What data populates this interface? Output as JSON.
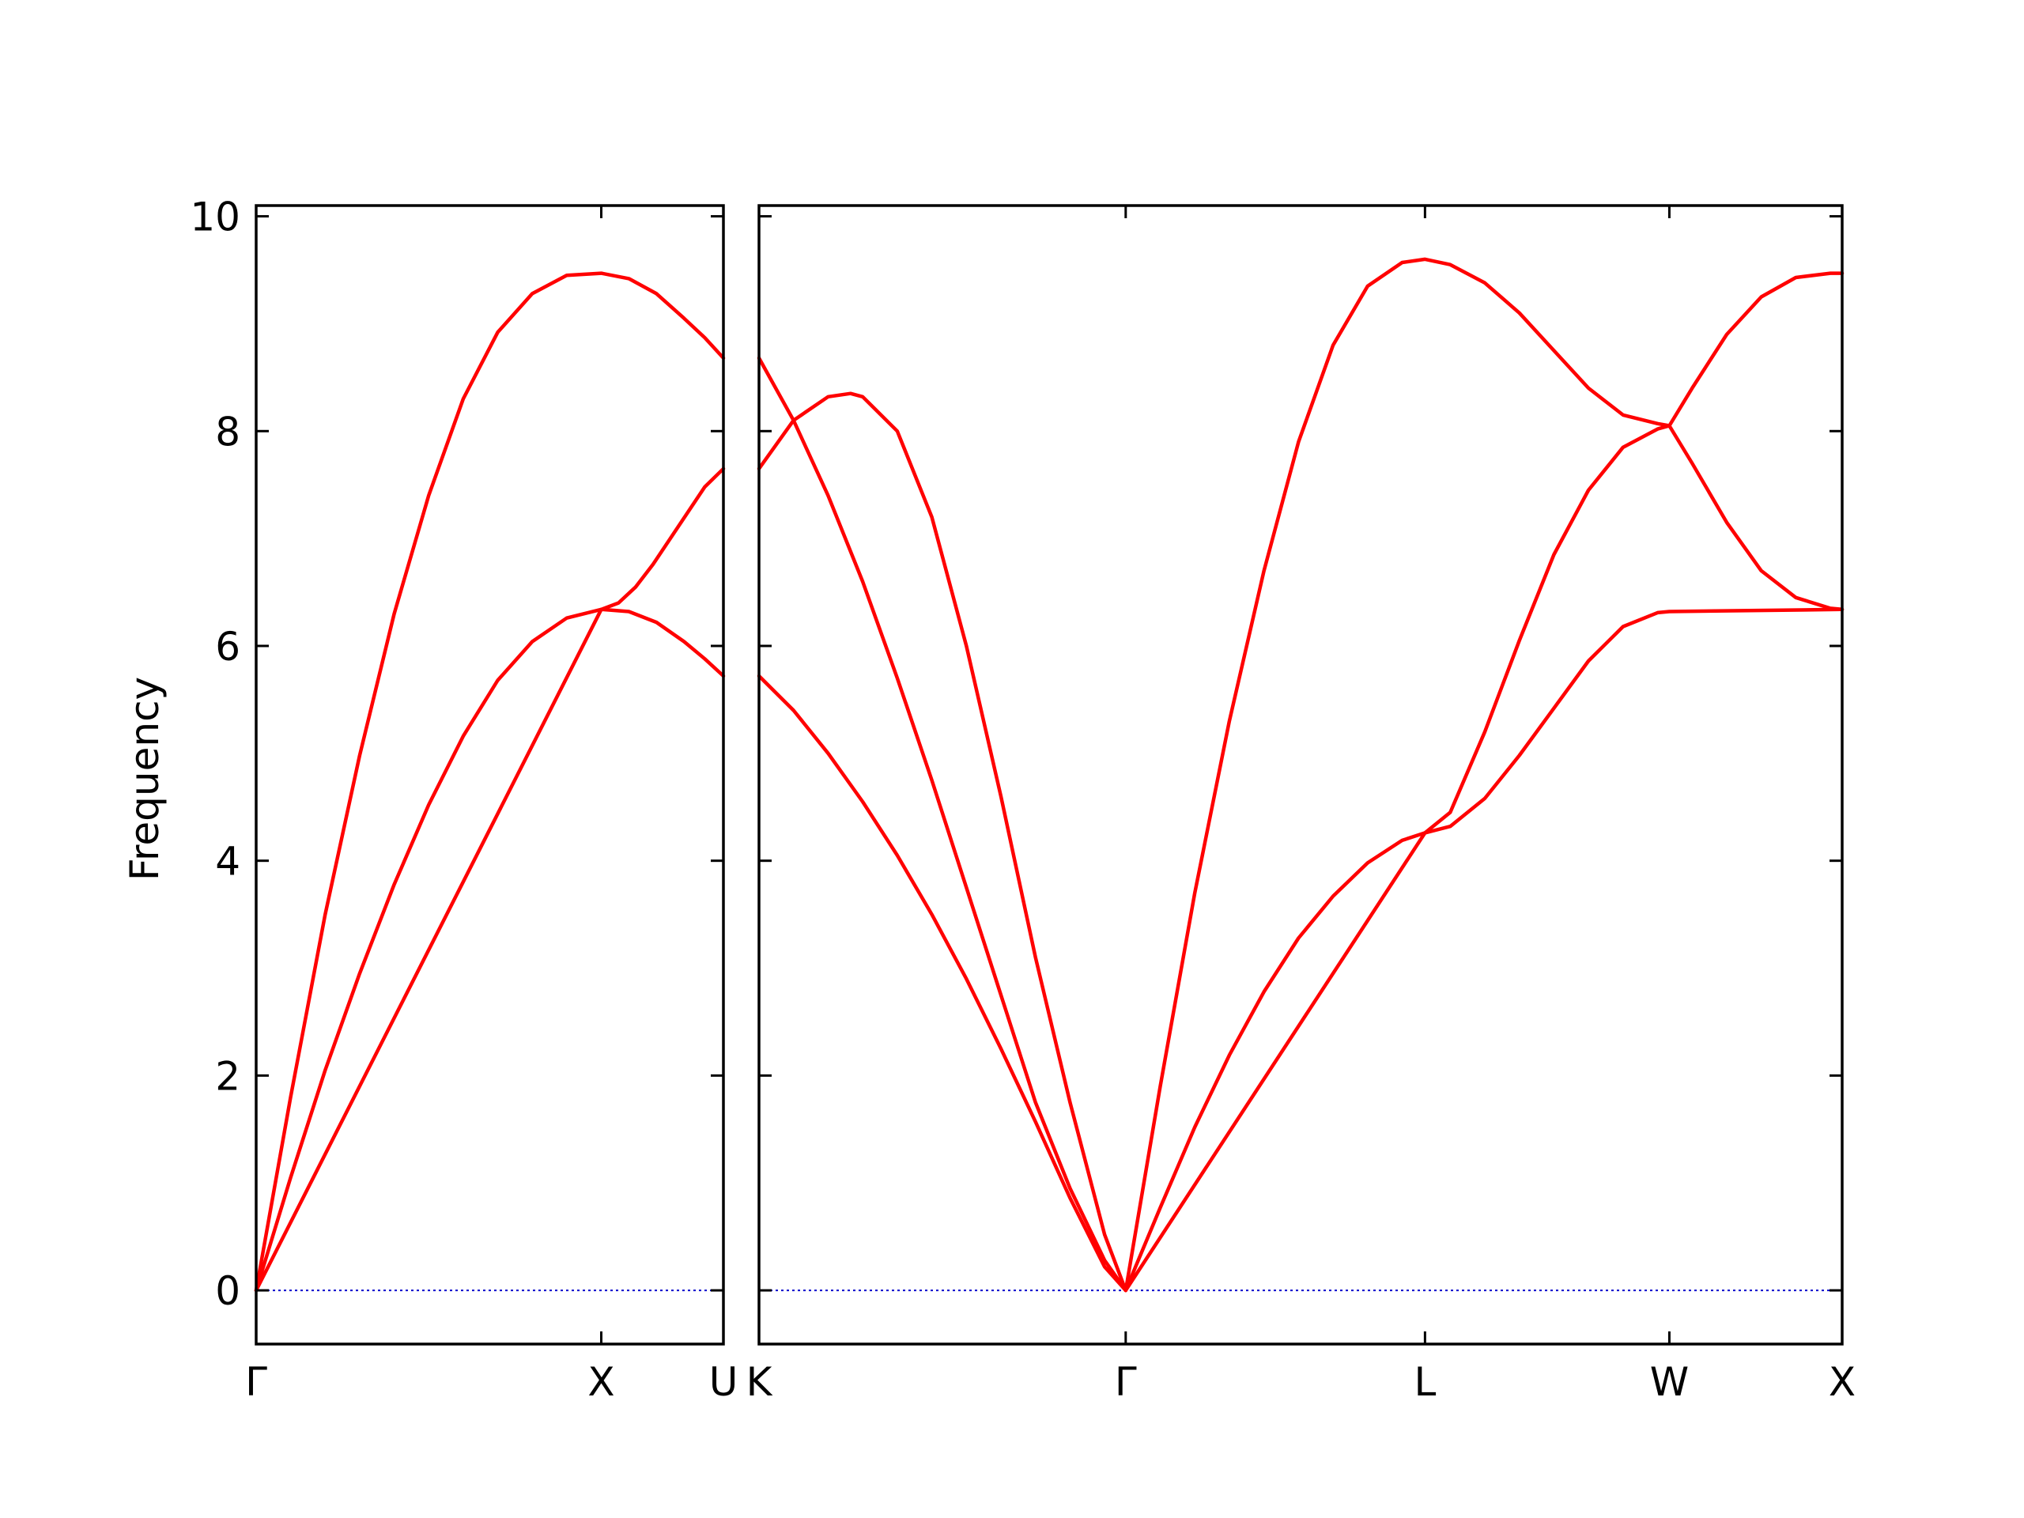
{
  "chart_data": {
    "type": "line",
    "title": "",
    "ylabel": "Frequency",
    "ylim": [
      -0.5,
      10.1
    ],
    "yticks": [
      0,
      2,
      4,
      6,
      8,
      10
    ],
    "band_color": "#ff0000",
    "zero_line_color": "#0000cc",
    "panels": [
      {
        "path_labels": [
          "Γ",
          "X",
          "U"
        ],
        "label_positions": [
          0,
          1,
          1.354
        ],
        "xlim": [
          0,
          1.354
        ],
        "series": [
          {
            "x": [
              0,
              0.1,
              0.2,
              0.3,
              0.4,
              0.5,
              0.6,
              0.7,
              0.8,
              0.9,
              1.0,
              1.08,
              1.16,
              1.24,
              1.3,
              1.354
            ],
            "values": [
              0,
              1.05,
              2.05,
              2.95,
              3.78,
              4.52,
              5.16,
              5.68,
              6.04,
              6.26,
              6.34,
              6.32,
              6.22,
              6.04,
              5.88,
              5.72
            ]
          },
          {
            "x": [
              0,
              1.0,
              1.05,
              1.1,
              1.15,
              1.2,
              1.25,
              1.3,
              1.354
            ],
            "values": [
              0,
              6.34,
              6.4,
              6.55,
              6.76,
              7.0,
              7.24,
              7.48,
              7.65
            ]
          },
          {
            "x": [
              0,
              0.1,
              0.2,
              0.3,
              0.4,
              0.5,
              0.6,
              0.7,
              0.8,
              0.9,
              1.0,
              1.08,
              1.16,
              1.24,
              1.3,
              1.354
            ],
            "values": [
              0,
              1.8,
              3.5,
              4.98,
              6.3,
              7.4,
              8.3,
              8.92,
              9.28,
              9.45,
              9.47,
              9.42,
              9.28,
              9.05,
              8.87,
              8.68
            ]
          }
        ]
      },
      {
        "path_labels": [
          "K",
          "Γ",
          "L",
          "W",
          "X"
        ],
        "label_positions": [
          0,
          1.061,
          1.927,
          2.634,
          3.134
        ],
        "xlim": [
          0,
          3.134
        ],
        "series": [
          {
            "x": [
              0,
              0.1,
              0.2,
              0.3,
              0.4,
              0.5,
              0.6,
              0.7,
              0.8,
              0.9,
              1.0,
              1.061,
              1.161,
              1.261,
              1.361,
              1.461,
              1.561,
              1.661,
              1.761,
              1.861,
              1.927,
              2.0,
              2.1,
              2.2,
              2.3,
              2.4,
              2.5,
              2.6,
              2.634,
              3.134
            ],
            "values": [
              5.72,
              5.4,
              5.0,
              4.55,
              4.05,
              3.5,
              2.9,
              2.25,
              1.57,
              0.86,
              0.22,
              0,
              0.77,
              1.52,
              2.19,
              2.78,
              3.28,
              3.67,
              3.98,
              4.19,
              4.26,
              4.32,
              4.58,
              4.98,
              5.42,
              5.86,
              6.18,
              6.31,
              6.32,
              6.34
            ]
          },
          {
            "x": [
              0,
              0.1,
              0.2,
              0.3,
              0.4,
              0.5,
              0.6,
              0.7,
              0.8,
              0.9,
              1.0,
              1.061,
              1.927,
              2.0,
              2.1,
              2.2,
              2.3,
              2.4,
              2.5,
              2.6,
              2.634,
              2.7,
              2.8,
              2.9,
              3.0,
              3.1,
              3.134
            ],
            "values": [
              8.68,
              8.1,
              7.4,
              6.6,
              5.7,
              4.75,
              3.75,
              2.75,
              1.75,
              0.95,
              0.28,
              0,
              4.26,
              4.45,
              5.2,
              6.05,
              6.85,
              7.45,
              7.85,
              8.02,
              8.05,
              7.7,
              7.15,
              6.7,
              6.45,
              6.35,
              6.34
            ]
          },
          {
            "x": [
              0,
              0.1,
              0.2,
              0.265,
              0.3,
              0.4,
              0.5,
              0.6,
              0.7,
              0.8,
              0.9,
              1.0,
              1.061,
              1.161,
              1.261,
              1.361,
              1.461,
              1.561,
              1.661,
              1.761,
              1.861,
              1.927,
              2.0,
              2.1,
              2.2,
              2.3,
              2.4,
              2.5,
              2.6,
              2.634,
              2.7,
              2.8,
              2.9,
              3.0,
              3.1,
              3.134
            ],
            "values": [
              7.65,
              8.1,
              8.32,
              8.35,
              8.32,
              8.0,
              7.2,
              6.0,
              4.6,
              3.1,
              1.75,
              0.52,
              0,
              1.9,
              3.7,
              5.3,
              6.7,
              7.9,
              8.8,
              9.35,
              9.57,
              9.6,
              9.55,
              9.38,
              9.1,
              8.75,
              8.4,
              8.15,
              8.07,
              8.05,
              8.4,
              8.9,
              9.25,
              9.43,
              9.47,
              9.47
            ]
          }
        ]
      }
    ]
  }
}
